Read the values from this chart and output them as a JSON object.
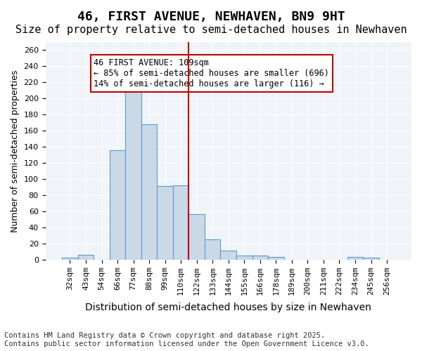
{
  "title": "46, FIRST AVENUE, NEWHAVEN, BN9 9HT",
  "subtitle": "Size of property relative to semi-detached houses in Newhaven",
  "xlabel": "Distribution of semi-detached houses by size in Newhaven",
  "ylabel": "Number of semi-detached properties",
  "categories": [
    "32sqm",
    "43sqm",
    "54sqm",
    "66sqm",
    "77sqm",
    "88sqm",
    "99sqm",
    "110sqm",
    "122sqm",
    "133sqm",
    "144sqm",
    "155sqm",
    "166sqm",
    "178sqm",
    "189sqm",
    "200sqm",
    "211sqm",
    "222sqm",
    "234sqm",
    "245sqm",
    "256sqm"
  ],
  "values": [
    2,
    6,
    0,
    136,
    213,
    168,
    91,
    92,
    56,
    25,
    11,
    5,
    5,
    3,
    0,
    0,
    0,
    0,
    3,
    2,
    0
  ],
  "bar_color": "#c9d9e8",
  "bar_edge_color": "#5b9bd5",
  "vline_x": 7.5,
  "vline_color": "#c00000",
  "annotation_text": "46 FIRST AVENUE: 109sqm\n← 85% of semi-detached houses are smaller (696)\n14% of semi-detached houses are larger (116) →",
  "annotation_box_color": "#ffffff",
  "annotation_box_edge": "#c00000",
  "ylim": [
    0,
    270
  ],
  "yticks": [
    0,
    20,
    40,
    60,
    80,
    100,
    120,
    140,
    160,
    180,
    200,
    220,
    240,
    260
  ],
  "background_color": "#f0f4f8",
  "footer_text": "Contains HM Land Registry data © Crown copyright and database right 2025.\nContains public sector information licensed under the Open Government Licence v3.0.",
  "title_fontsize": 13,
  "subtitle_fontsize": 11,
  "xlabel_fontsize": 10,
  "ylabel_fontsize": 9,
  "tick_fontsize": 8,
  "annotation_fontsize": 8.5,
  "footer_fontsize": 7.5
}
